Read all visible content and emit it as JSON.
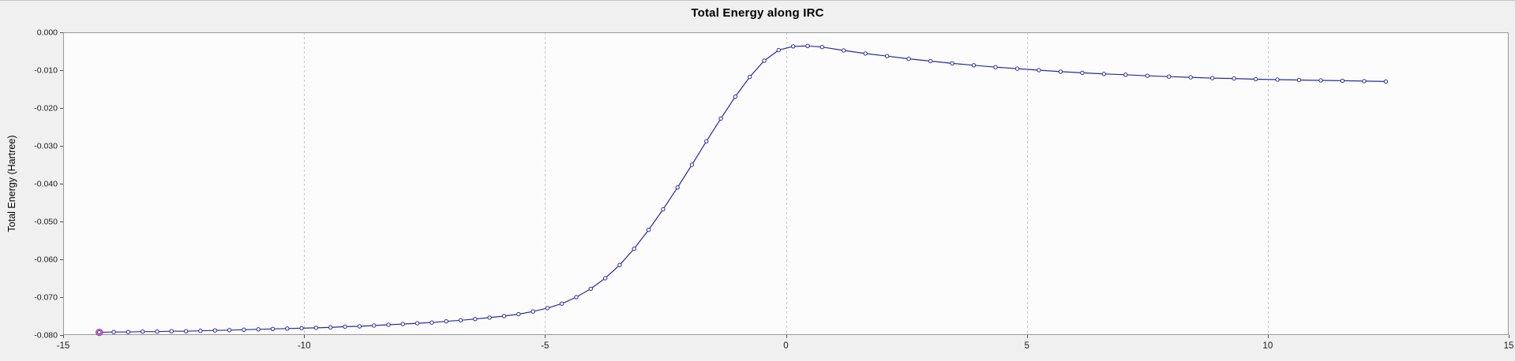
{
  "window": {
    "background_color": "#f0f0f0",
    "top_border_color": "#c6c6c6"
  },
  "chart_data": {
    "type": "line",
    "title": "Total Energy along IRC",
    "xlabel": "",
    "ylabel": "Total Energy (Hartree)",
    "xlim": [
      -15,
      15
    ],
    "ylim": [
      -0.08,
      0.0
    ],
    "x_ticks": [
      -15,
      -10,
      -5,
      0,
      5,
      10,
      15
    ],
    "x_tick_labels": [
      "-15",
      "-10",
      "-5",
      "0",
      "5",
      "10",
      "15"
    ],
    "y_ticks": [
      0.0,
      -0.01,
      -0.02,
      -0.03,
      -0.04,
      -0.05,
      -0.06,
      -0.07,
      -0.08
    ],
    "y_tick_labels": [
      "0.000",
      "-0.010",
      "-0.020",
      "-0.030",
      "-0.040",
      "-0.050",
      "-0.060",
      "-0.070",
      "-0.080"
    ],
    "grid": "vertical-dashed",
    "legend": "none",
    "colors": {
      "line": "#2a2aa0",
      "marker_fill": "#ffffff",
      "marker_stroke": "#2a2aa0",
      "highlight_fill": "#efaaef",
      "highlight_stroke": "#b43399",
      "grid": "#c9c9c9",
      "plot_background": "#fcfcfc",
      "plot_border": "#9a9a9a",
      "tick": "#555555",
      "tick_text": "#1a1a1a"
    },
    "highlight_first_point": true,
    "series": [
      {
        "name": "Total Energy",
        "points": [
          [
            -14.25,
            -0.0793
          ],
          [
            -13.95,
            -0.0792
          ],
          [
            -13.65,
            -0.0792
          ],
          [
            -13.35,
            -0.0791
          ],
          [
            -13.05,
            -0.0791
          ],
          [
            -12.75,
            -0.079
          ],
          [
            -12.45,
            -0.079
          ],
          [
            -12.15,
            -0.0789
          ],
          [
            -11.85,
            -0.0788
          ],
          [
            -11.55,
            -0.0787
          ],
          [
            -11.25,
            -0.0786
          ],
          [
            -10.95,
            -0.0785
          ],
          [
            -10.65,
            -0.0784
          ],
          [
            -10.35,
            -0.0783
          ],
          [
            -10.05,
            -0.0782
          ],
          [
            -9.75,
            -0.0781
          ],
          [
            -9.45,
            -0.078
          ],
          [
            -9.15,
            -0.0778
          ],
          [
            -8.85,
            -0.0777
          ],
          [
            -8.55,
            -0.0775
          ],
          [
            -8.25,
            -0.0773
          ],
          [
            -7.95,
            -0.0771
          ],
          [
            -7.65,
            -0.0769
          ],
          [
            -7.35,
            -0.0767
          ],
          [
            -7.05,
            -0.0764
          ],
          [
            -6.75,
            -0.0761
          ],
          [
            -6.45,
            -0.0758
          ],
          [
            -6.15,
            -0.0754
          ],
          [
            -5.85,
            -0.075
          ],
          [
            -5.55,
            -0.0745
          ],
          [
            -5.25,
            -0.0738
          ],
          [
            -4.95,
            -0.0729
          ],
          [
            -4.65,
            -0.0717
          ],
          [
            -4.35,
            -0.07
          ],
          [
            -4.05,
            -0.0678
          ],
          [
            -3.75,
            -0.065
          ],
          [
            -3.45,
            -0.0615
          ],
          [
            -3.15,
            -0.0572
          ],
          [
            -2.85,
            -0.0522
          ],
          [
            -2.55,
            -0.0468
          ],
          [
            -2.25,
            -0.041
          ],
          [
            -1.95,
            -0.035
          ],
          [
            -1.65,
            -0.0288
          ],
          [
            -1.35,
            -0.0228
          ],
          [
            -1.05,
            -0.017
          ],
          [
            -0.75,
            -0.0118
          ],
          [
            -0.45,
            -0.0075
          ],
          [
            -0.15,
            -0.0047
          ],
          [
            0.15,
            -0.0037
          ],
          [
            0.45,
            -0.0036
          ],
          [
            0.75,
            -0.0039
          ],
          [
            1.2,
            -0.0048
          ],
          [
            1.65,
            -0.0056
          ],
          [
            2.1,
            -0.0063
          ],
          [
            2.55,
            -0.007
          ],
          [
            3.0,
            -0.0076
          ],
          [
            3.45,
            -0.0082
          ],
          [
            3.9,
            -0.0087
          ],
          [
            4.35,
            -0.0092
          ],
          [
            4.8,
            -0.0096
          ],
          [
            5.25,
            -0.01
          ],
          [
            5.7,
            -0.0104
          ],
          [
            6.15,
            -0.0107
          ],
          [
            6.6,
            -0.011
          ],
          [
            7.05,
            -0.0112
          ],
          [
            7.5,
            -0.0115
          ],
          [
            7.95,
            -0.0117
          ],
          [
            8.4,
            -0.0119
          ],
          [
            8.85,
            -0.0121
          ],
          [
            9.3,
            -0.0122
          ],
          [
            9.75,
            -0.0124
          ],
          [
            10.2,
            -0.0125
          ],
          [
            10.65,
            -0.0126
          ],
          [
            11.1,
            -0.0127
          ],
          [
            11.55,
            -0.0128
          ],
          [
            12.0,
            -0.0129
          ],
          [
            12.45,
            -0.013
          ]
        ]
      }
    ]
  }
}
